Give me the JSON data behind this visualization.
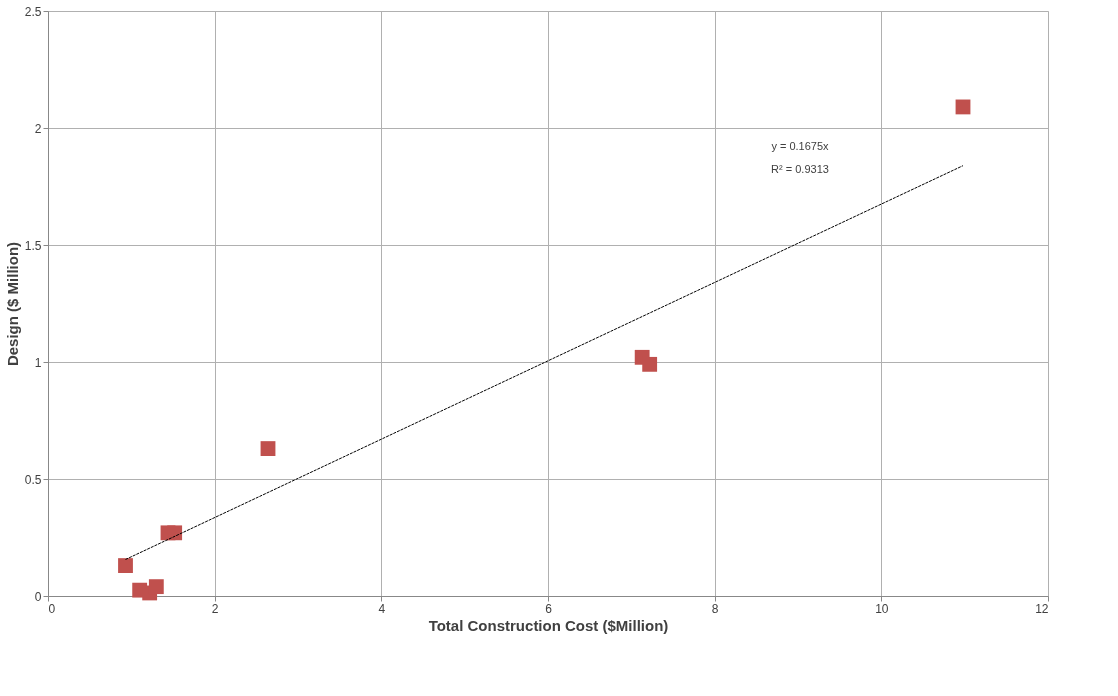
{
  "chart_data": {
    "type": "scatter",
    "xlabel": "Total Construction Cost ($Million)",
    "ylabel": "Design ($ Million)",
    "xlim": [
      0,
      12
    ],
    "xticks": [
      0,
      2,
      4,
      6,
      8,
      10,
      12
    ],
    "ylim": [
      0,
      2.5
    ],
    "yticks": [
      0,
      0.5,
      1,
      1.5,
      2,
      2.5
    ],
    "grid": true,
    "marker": "square",
    "series": [
      {
        "color": "#c0504d",
        "x": [
          0.93,
          1.1,
          1.22,
          1.3,
          1.44,
          1.52,
          2.64,
          7.13,
          7.22,
          10.98
        ],
        "values": [
          0.13,
          0.025,
          0.013,
          0.04,
          0.27,
          0.27,
          0.63,
          1.02,
          0.99,
          2.09
        ]
      },
      {
        "type": "line",
        "color": "#000000",
        "marker": "none",
        "line_style": "dashed",
        "x": [
          0.93,
          10.98
        ],
        "values": [
          0.156,
          1.839
        ]
      }
    ],
    "annotations": [
      "y = 0.1675x",
      "R² = 0.9313"
    ]
  }
}
